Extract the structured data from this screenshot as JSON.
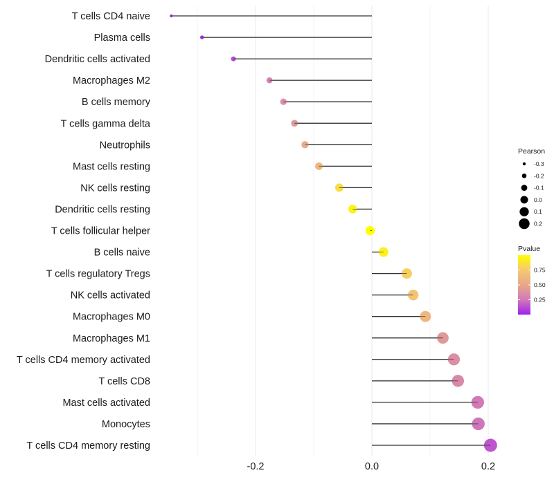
{
  "chart_data": {
    "type": "lollipop",
    "title": "",
    "xlabel": "",
    "ylabel": "",
    "xlim": [
      -0.35,
      0.21
    ],
    "x_ticks": [
      -0.2,
      0.0,
      0.2
    ],
    "x_tick_labels": [
      "-0.2",
      "0.0",
      "0.2"
    ],
    "grid": true,
    "categories": [
      "T cells CD4 naive",
      "Plasma cells",
      "Dendritic cells activated",
      "Macrophages M2",
      "B cells memory",
      "T cells gamma delta",
      "Neutrophils",
      "Mast cells resting",
      "NK cells resting",
      "Dendritic cells resting",
      "T cells follicular helper",
      "B cells naive",
      "T cells regulatory  Tregs ",
      "NK cells activated",
      "Macrophages M0",
      "Macrophages M1",
      "T cells CD4 memory activated",
      "T cells CD8",
      "Mast cells activated",
      "Monocytes",
      "T cells CD4 memory resting"
    ],
    "pearson": [
      -0.345,
      -0.292,
      -0.238,
      -0.176,
      -0.152,
      -0.133,
      -0.115,
      -0.091,
      -0.056,
      -0.033,
      -0.003,
      0.02,
      0.06,
      0.071,
      0.092,
      0.122,
      0.141,
      0.148,
      0.182,
      0.183,
      0.204
    ],
    "pvalue": [
      0.02,
      0.05,
      0.12,
      0.3,
      0.36,
      0.42,
      0.52,
      0.62,
      0.85,
      0.94,
      1.0,
      0.93,
      0.78,
      0.72,
      0.62,
      0.42,
      0.36,
      0.33,
      0.25,
      0.24,
      0.15
    ],
    "legend_size": {
      "title": "Pearson",
      "labels": [
        "-0.3",
        "-0.2",
        "-0.1",
        "0.0",
        "0.1",
        "0.2"
      ],
      "values": [
        -0.3,
        -0.2,
        -0.1,
        0.0,
        0.1,
        0.2
      ]
    },
    "legend_color": {
      "title": "Pvalue",
      "labels": [
        "0.75",
        "0.50",
        "0.25"
      ],
      "values": [
        0.75,
        0.5,
        0.25
      ],
      "range": [
        0.0,
        1.0
      ],
      "colors": [
        "#a020f0",
        "#d07ab8",
        "#e8a88a",
        "#f5c870",
        "#ffff00"
      ]
    },
    "legend_position": "right",
    "stem_color": "#333333"
  }
}
